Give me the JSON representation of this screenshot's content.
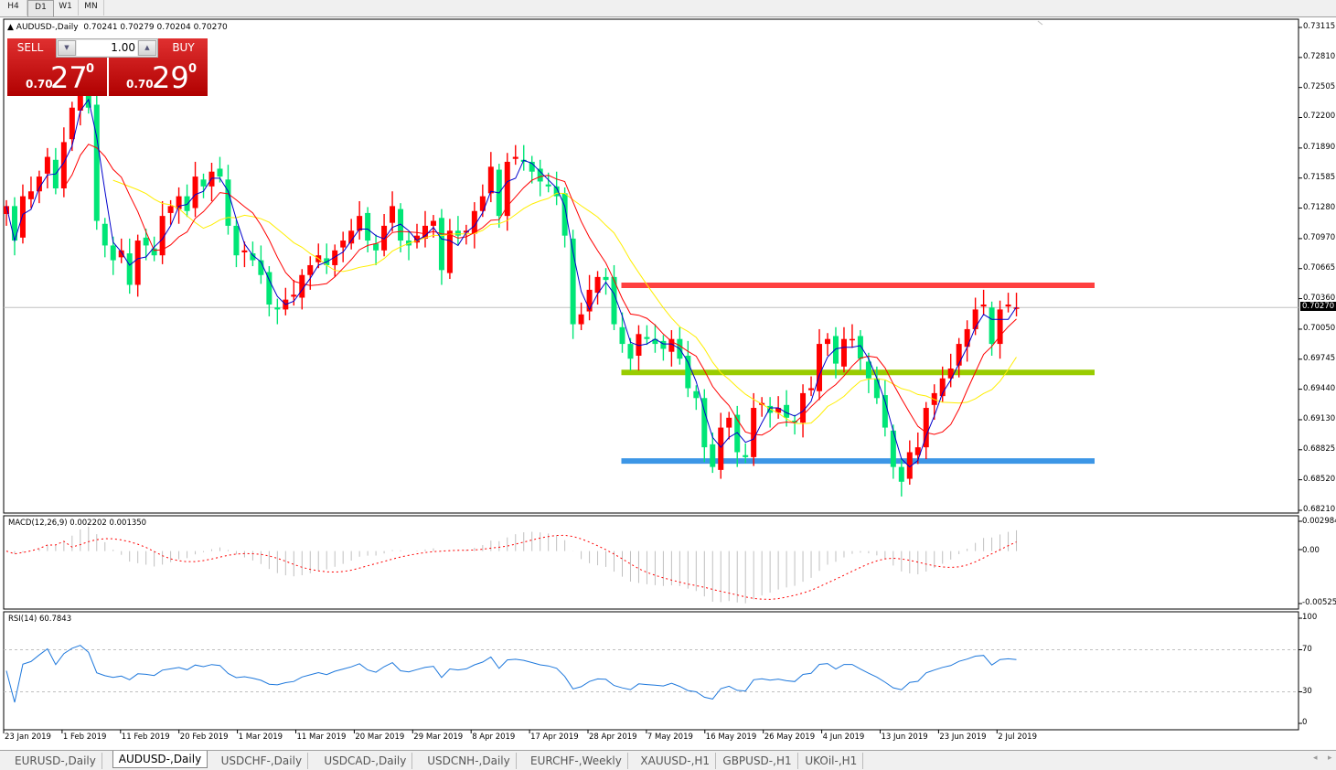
{
  "timeframes": [
    {
      "label": "H4",
      "active": false
    },
    {
      "label": "D1",
      "active": true
    },
    {
      "label": "W1",
      "active": false
    },
    {
      "label": "MN",
      "active": false
    }
  ],
  "chart": {
    "symbol_title": "AUDUSD-,Daily",
    "ohlc": "0.70241 0.70279 0.70204 0.70270",
    "current_price": 0.7027,
    "current_price_label": "0.70270",
    "price_range": [
      0.6821,
      0.73115
    ],
    "price_ticks": [
      "0.73115",
      "0.72810",
      "0.72505",
      "0.72200",
      "0.71890",
      "0.71585",
      "0.71280",
      "0.70970",
      "0.70665",
      "0.70360",
      "0.70050",
      "0.69745",
      "0.69440",
      "0.69130",
      "0.68825",
      "0.68520",
      "0.68210"
    ],
    "colors": {
      "bull": "#ff0000",
      "bear": "#00e676",
      "ma_fast": "#0000cc",
      "ma_mid": "#ff0000",
      "ma_slow": "#ffee00",
      "current_line": "#c0c0c0"
    },
    "closes": [
      0.713,
      0.7095,
      0.714,
      0.7145,
      0.716,
      0.718,
      0.7148,
      0.7195,
      0.723,
      0.7255,
      0.723,
      0.7115,
      0.709,
      0.7075,
      0.7085,
      0.705,
      0.7095,
      0.709,
      0.708,
      0.712,
      0.713,
      0.714,
      0.7125,
      0.716,
      0.715,
      0.7165,
      0.716,
      0.711,
      0.708,
      0.7085,
      0.7075,
      0.706,
      0.703,
      0.7025,
      0.7035,
      0.704,
      0.706,
      0.707,
      0.708,
      0.707,
      0.7085,
      0.7095,
      0.7105,
      0.712,
      0.7095,
      0.7085,
      0.711,
      0.713,
      0.7095,
      0.709,
      0.71,
      0.711,
      0.7115,
      0.7065,
      0.7105,
      0.71,
      0.7105,
      0.7125,
      0.714,
      0.717,
      0.712,
      0.7175,
      0.718,
      0.7175,
      0.7165,
      0.7155,
      0.715,
      0.714,
      0.71,
      0.701,
      0.702,
      0.7045,
      0.7058,
      0.7055,
      0.701,
      0.699,
      0.6975,
      0.7,
      0.6995,
      0.699,
      0.6985,
      0.6995,
      0.6975,
      0.6945,
      0.6935,
      0.6885,
      0.6865,
      0.6905,
      0.6915,
      0.688,
      0.6875,
      0.6925,
      0.693,
      0.692,
      0.6925,
      0.6915,
      0.691,
      0.694,
      0.6945,
      0.699,
      0.6995,
      0.697,
      0.6995,
      0.6995,
      0.6975,
      0.6955,
      0.6935,
      0.6905,
      0.6865,
      0.685,
      0.688,
      0.6885,
      0.6925,
      0.694,
      0.6955,
      0.6965,
      0.699,
      0.7005,
      0.7025,
      0.703,
      0.699,
      0.7025,
      0.703,
      0.7027
    ],
    "levels": [
      {
        "name": "resistance",
        "price": 0.70495,
        "color": "#ff4040",
        "from_candle": 75
      },
      {
        "name": "middle",
        "price": 0.6961,
        "color": "#99cc00",
        "from_candle": 75
      },
      {
        "name": "support",
        "price": 0.6871,
        "color": "#3c96e6",
        "from_candle": 75
      }
    ],
    "date_labels": [
      "23 Jan 2019",
      "1 Feb 2019",
      "11 Feb 2019",
      "20 Feb 2019",
      "1 Mar 2019",
      "11 Mar 2019",
      "20 Mar 2019",
      "29 Mar 2019",
      "8 Apr 2019",
      "17 Apr 2019",
      "28 Apr 2019",
      "7 May 2019",
      "16 May 2019",
      "26 May 2019",
      "4 Jun 2019",
      "13 Jun 2019",
      "23 Jun 2019",
      "2 Jul 2019"
    ]
  },
  "trade_panel": {
    "sell_label": "SELL",
    "buy_label": "BUY",
    "lot": "1.00",
    "sell_prefix": "0.70",
    "sell_big": "27",
    "sell_sup": "0",
    "buy_prefix": "0.70",
    "buy_big": "29",
    "buy_sup": "0"
  },
  "macd": {
    "title": "MACD(12,26,9) 0.002202 0.001350",
    "max_label": "0.002984",
    "zero_label": "0.00",
    "min_label": "-0.00525",
    "range": [
      -0.00525,
      0.002984
    ]
  },
  "rsi": {
    "title": "RSI(14) 60.7843",
    "ticks": [
      "100",
      "70",
      "30",
      "0"
    ],
    "levels": [
      70,
      30
    ],
    "color": "#1e78dc"
  },
  "symbol_tabs": [
    {
      "label": "EURUSD-,Daily",
      "active": false
    },
    {
      "label": "AUDUSD-,Daily",
      "active": true
    },
    {
      "label": "USDCHF-,Daily",
      "active": false
    },
    {
      "label": "USDCAD-,Daily",
      "active": false
    },
    {
      "label": "USDCNH-,Daily",
      "active": false
    },
    {
      "label": "EURCHF-,Weekly",
      "active": false
    },
    {
      "label": "XAUUSD-,H1",
      "active": false
    },
    {
      "label": "GBPUSD-,H1",
      "active": false
    },
    {
      "label": "UKOil-,H1",
      "active": false
    }
  ],
  "scroll": {
    "left": "◂",
    "right": "▸"
  }
}
